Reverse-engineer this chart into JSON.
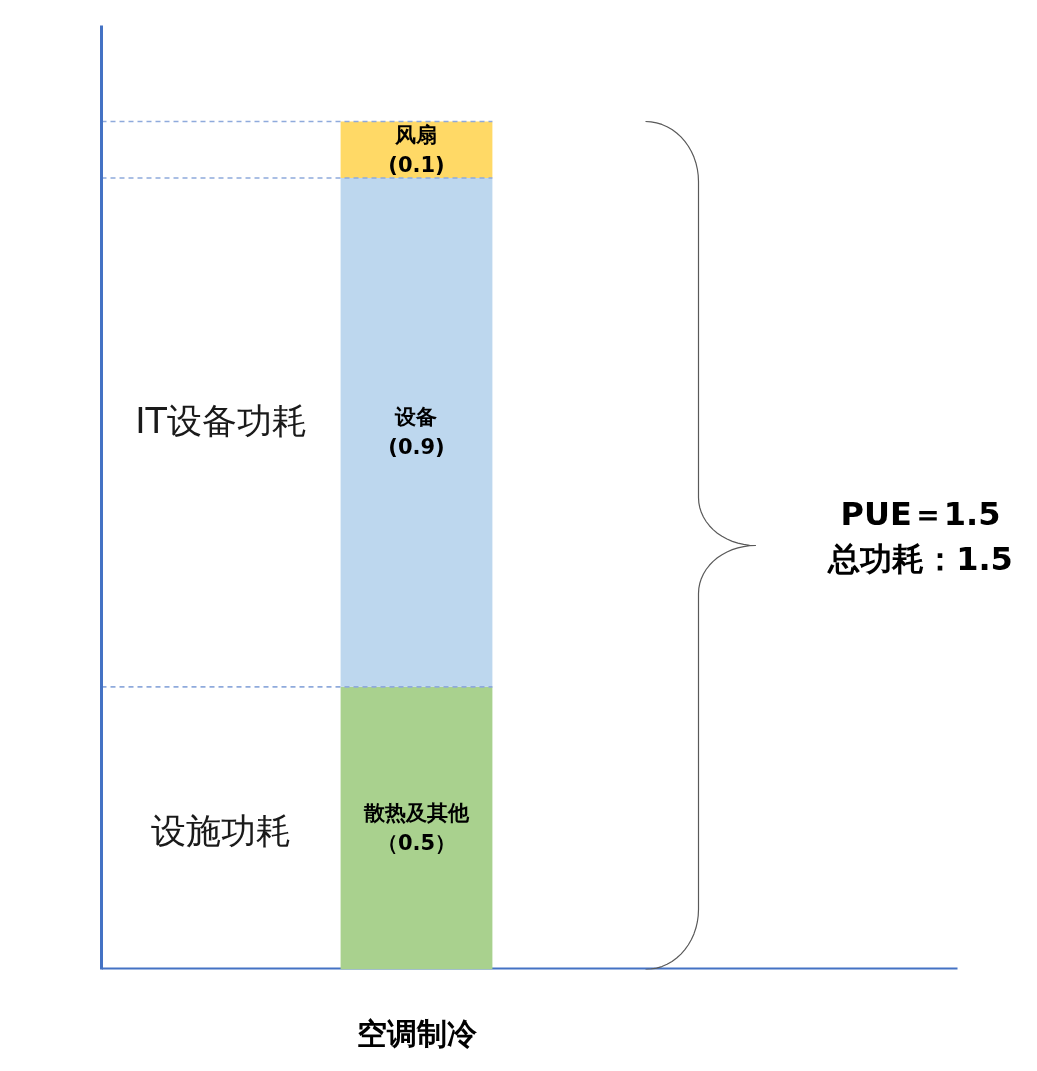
{
  "chart_data": {
    "type": "bar",
    "stacked": true,
    "categories": [
      "空调制冷"
    ],
    "series": [
      {
        "color": "#a9d18e",
        "values": [
          0.5
        ],
        "value_labels": [
          "散热及其他（0.5）"
        ]
      },
      {
        "color": "#bdd7ee",
        "values": [
          0.9
        ],
        "value_labels": [
          "设备(0.9)"
        ]
      },
      {
        "color": "#ffd966",
        "values": [
          0.1
        ],
        "value_labels": [
          "风扇(0.1)"
        ]
      }
    ],
    "tick_labels": "x",
    "ref_lines": [
      {
        "axis": "y",
        "value": 0.5,
        "color": "#8faadc",
        "line_style": "dashed"
      },
      {
        "axis": "y",
        "value": 1.4,
        "color": "#8faadc",
        "line_style": "dashed"
      },
      {
        "axis": "y",
        "value": 1.5,
        "color": "#8faadc",
        "line_style": "dashed"
      }
    ],
    "annotations": [
      "IT设备功耗",
      "设施功耗",
      "PUE＝1.5",
      "总功耗：1.5"
    ]
  }
}
